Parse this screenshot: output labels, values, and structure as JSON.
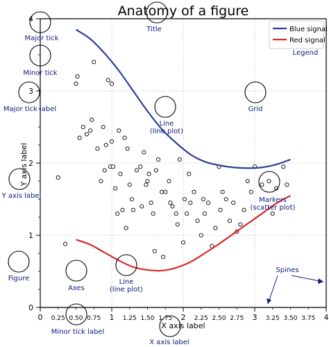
{
  "chart_data": {
    "type": "line",
    "title": "Anatomy of a figure",
    "xlabel": "X axis label",
    "ylabel": "Y axis label",
    "xlim": [
      0,
      4
    ],
    "ylim": [
      0,
      4
    ],
    "grid": true,
    "legend_position": "top-right",
    "major_x_ticks": [
      "0",
      "1",
      "2",
      "3",
      "4"
    ],
    "major_y_ticks": [
      "0",
      "1",
      "2",
      "3",
      "4"
    ],
    "minor_x_ticks": [
      "0.25",
      "0.50",
      "0.75",
      "1.25",
      "1.50",
      "1.75",
      "2.25",
      "2.50",
      "2.75",
      "3.25",
      "3.50",
      "3.75"
    ],
    "series": [
      {
        "name": "Blue signal",
        "color": "#2c3e97",
        "x": [
          0.5,
          0.7,
          0.9,
          1.1,
          1.3,
          1.5,
          1.7,
          1.9,
          2.1,
          2.3,
          2.5,
          2.7,
          2.9,
          3.1,
          3.3,
          3.5
        ],
        "y": [
          3.85,
          3.72,
          3.52,
          3.28,
          3.0,
          2.72,
          2.47,
          2.28,
          2.12,
          2.02,
          1.97,
          1.94,
          1.93,
          1.94,
          1.98,
          2.05
        ]
      },
      {
        "name": "Red signal",
        "color": "#d62728",
        "x": [
          0.5,
          0.7,
          0.9,
          1.1,
          1.3,
          1.5,
          1.7,
          1.9,
          2.1,
          2.3,
          2.5,
          2.7,
          2.9,
          3.1,
          3.3,
          3.5
        ],
        "y": [
          0.94,
          0.87,
          0.76,
          0.65,
          0.56,
          0.52,
          0.51,
          0.55,
          0.63,
          0.75,
          0.88,
          1.02,
          1.16,
          1.3,
          1.44,
          1.55
        ]
      },
      {
        "name": "Markers",
        "type": "scatter",
        "marker": "circle-open",
        "x": [
          0.5,
          0.52,
          0.55,
          0.6,
          0.65,
          0.7,
          0.72,
          0.75,
          0.8,
          0.85,
          0.9,
          0.88,
          0.92,
          0.95,
          0.98,
          1.0,
          1.02,
          1.05,
          1.08,
          1.1,
          1.12,
          1.15,
          1.18,
          1.2,
          1.22,
          1.25,
          1.28,
          1.3,
          1.35,
          1.4,
          1.42,
          1.45,
          1.48,
          1.5,
          1.52,
          1.55,
          1.58,
          1.6,
          1.62,
          1.65,
          1.7,
          1.72,
          1.75,
          1.8,
          1.82,
          1.85,
          1.9,
          1.92,
          1.95,
          2.0,
          2.02,
          2.05,
          2.08,
          2.1,
          2.15,
          2.2,
          2.25,
          2.28,
          2.3,
          2.35,
          2.4,
          2.45,
          2.5,
          2.52,
          2.55,
          2.6,
          2.65,
          2.7,
          2.75,
          2.8,
          2.85,
          2.9,
          2.95,
          3.0,
          3.1,
          3.2,
          3.25,
          3.3,
          3.4,
          3.45,
          1.0,
          0.25,
          0.35
        ],
        "y": [
          3.1,
          3.2,
          2.35,
          2.5,
          2.4,
          2.45,
          2.6,
          3.4,
          2.2,
          1.75,
          1.9,
          2.5,
          2.25,
          3.15,
          1.95,
          3.1,
          1.95,
          1.65,
          1.3,
          2.45,
          1.85,
          1.35,
          2.35,
          1.1,
          2.2,
          1.7,
          1.5,
          1.35,
          1.9,
          1.95,
          1.4,
          2.15,
          1.7,
          1.75,
          1.85,
          1.45,
          1.3,
          0.78,
          1.9,
          2.05,
          1.6,
          0.7,
          1.6,
          1.75,
          1.45,
          1.4,
          1.3,
          1.15,
          2.05,
          0.9,
          1.5,
          1.3,
          1.85,
          1.45,
          1.6,
          1.2,
          1.0,
          1.5,
          1.3,
          1.45,
          0.85,
          1.1,
          1.95,
          1.35,
          1.6,
          1.5,
          1.2,
          1.45,
          1.05,
          1.15,
          1.35,
          1.75,
          1.6,
          1.95,
          1.7,
          1.75,
          1.3,
          1.65,
          1.95,
          1.7,
          2.3,
          1.8,
          0.88
        ]
      }
    ],
    "annotations": [
      {
        "id": "title",
        "text": "Title"
      },
      {
        "id": "major-tick",
        "text": "Major tick"
      },
      {
        "id": "minor-tick",
        "text": "Minor tick"
      },
      {
        "id": "major-tick-label",
        "text": "Major tick label"
      },
      {
        "id": "line",
        "text": "Line\n(line plot)"
      },
      {
        "id": "grid",
        "text": "Grid"
      },
      {
        "id": "legend",
        "text": "Legend"
      },
      {
        "id": "y-axis-label",
        "text": "Y axis label"
      },
      {
        "id": "markers",
        "text": "Markers\n(scatter plot)"
      },
      {
        "id": "spines",
        "text": "Spines"
      },
      {
        "id": "figure",
        "text": "Figure"
      },
      {
        "id": "axes",
        "text": "Axes"
      },
      {
        "id": "line2",
        "text": "Line\n(line plot)"
      },
      {
        "id": "minor-tick-label",
        "text": "Minor tick label"
      },
      {
        "id": "x-axis-label",
        "text": "X axis label"
      }
    ]
  },
  "colors": {
    "annotation_text": "#0b1a7a",
    "spine": "#000000",
    "grid": "#b0b0b0",
    "blue_signal": "#2c3e97",
    "red_signal": "#d62728"
  }
}
